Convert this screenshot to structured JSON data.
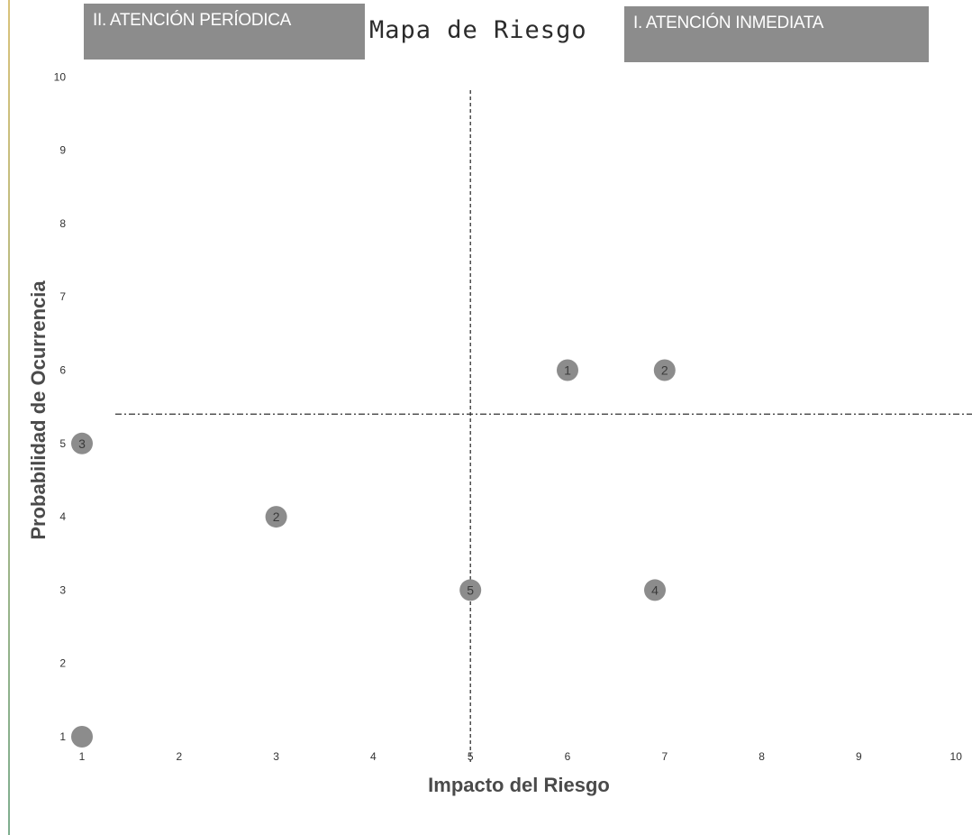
{
  "chart_data": {
    "type": "scatter",
    "title": "Mapa de Riesgo",
    "xlabel": "Impacto del Riesgo",
    "ylabel": "Probabilidad de Ocurrencia",
    "xlim": [
      1,
      10
    ],
    "ylim": [
      1,
      10
    ],
    "x_ticks": [
      "1",
      "2",
      "3",
      "4",
      "5",
      "6",
      "7",
      "8",
      "9",
      "10"
    ],
    "y_ticks": [
      "1",
      "2",
      "3",
      "4",
      "5",
      "6",
      "7",
      "8",
      "9",
      "10"
    ],
    "grid": false,
    "quadrant_labels": {
      "top_left": "II. ATENCIÓN PERÍODICA",
      "top_right": "I. ATENCIÓN INMEDIATA"
    },
    "threshold_lines": {
      "x": 5,
      "y": 5.4
    },
    "marker_color": "#8c8c8c",
    "points": [
      {
        "x": 6,
        "y": 6,
        "label": "1"
      },
      {
        "x": 7,
        "y": 6,
        "label": "2"
      },
      {
        "x": 1,
        "y": 5,
        "label": "3"
      },
      {
        "x": 3,
        "y": 4,
        "label": "2"
      },
      {
        "x": 5,
        "y": 3,
        "label": "5"
      },
      {
        "x": 6.9,
        "y": 3,
        "label": "4"
      },
      {
        "x": 1,
        "y": 1,
        "label": ""
      }
    ]
  }
}
